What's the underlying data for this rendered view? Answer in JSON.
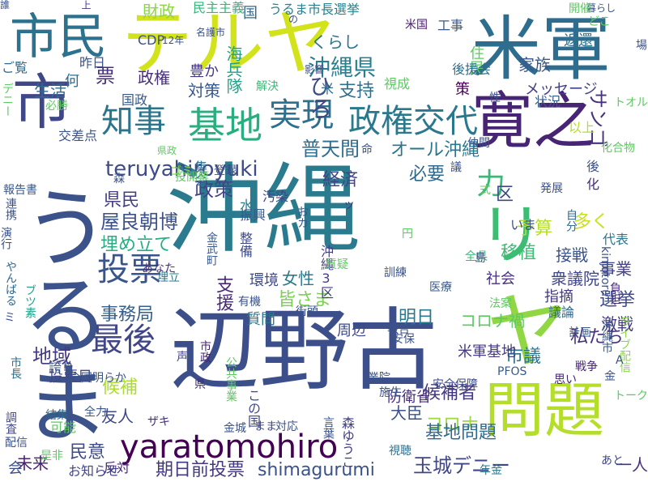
{
  "word_cloud": {
    "words": [
      {
        "text": "沖縄",
        "color": "#2a7b8e"
      },
      {
        "text": "辺野古",
        "color": "#3c4f8a"
      },
      {
        "text": "米軍",
        "color": "#2f6d8e"
      },
      {
        "text": "テルヤ",
        "color": "#d2e21b"
      },
      {
        "text": "市民",
        "color": "#2c728e"
      },
      {
        "text": "寛之",
        "color": "#482475"
      },
      {
        "text": "問題",
        "color": "#b5de2b"
      },
      {
        "text": "うるま",
        "color": "#3b528b"
      },
      {
        "text": "市",
        "color": "#3f4788"
      },
      {
        "text": "yaratomohiro",
        "color": "#440154"
      },
      {
        "text": "知事",
        "color": "#2b748e"
      },
      {
        "text": "基地",
        "color": "#29af7f"
      },
      {
        "text": "実現",
        "color": "#2d708e"
      },
      {
        "text": "政権交代",
        "color": "#2a788e"
      },
      {
        "text": "投票",
        "color": "#39568c"
      },
      {
        "text": "最後",
        "color": "#404688"
      },
      {
        "text": "ヤ",
        "color": "#90d743"
      },
      {
        "text": "リ",
        "color": "#3dbc74"
      },
      {
        "text": "沖縄県",
        "color": "#287d8e"
      },
      {
        "text": "普天間",
        "color": "#2e6e8e"
      },
      {
        "text": "オール沖縄",
        "color": "#2a768e"
      },
      {
        "text": "teruyahiroyuki",
        "color": "#3e4a89"
      },
      {
        "text": "政策",
        "color": "#414487"
      },
      {
        "text": "必要",
        "color": "#31688e"
      },
      {
        "text": "県民",
        "color": "#433e85"
      },
      {
        "text": "屋良朝博",
        "color": "#3b528b"
      },
      {
        "text": "埋め立て",
        "color": "#27ad81"
      },
      {
        "text": "事務局",
        "color": "#355f8d"
      },
      {
        "text": "地域",
        "color": "#443983"
      },
      {
        "text": "候補",
        "color": "#addc30"
      },
      {
        "text": "期日前投票",
        "color": "#453781"
      },
      {
        "text": "shimagurumi",
        "color": "#3b528b"
      },
      {
        "text": "玉城デニー",
        "color": "#404688"
      },
      {
        "text": "コロナ",
        "color": "#9bd93c"
      },
      {
        "text": "基地問題",
        "color": "#2f6b8e"
      },
      {
        "text": "候補者",
        "color": "#453882"
      },
      {
        "text": "私たち",
        "color": "#46327e"
      },
      {
        "text": "選挙",
        "color": "#3e4989"
      },
      {
        "text": "明日",
        "color": "#29798e"
      },
      {
        "text": "移植",
        "color": "#3dbc74"
      },
      {
        "text": "予算",
        "color": "#b5de2b"
      },
      {
        "text": "多く",
        "color": "#c8e020"
      },
      {
        "text": "事業",
        "color": "#414287"
      },
      {
        "text": "力",
        "color": "#38b977"
      },
      {
        "text": "経済",
        "color": "#404588"
      },
      {
        "text": "財政",
        "color": "#8bd646"
      },
      {
        "text": "民主主義",
        "color": "#35b779"
      },
      {
        "text": "うるま市長選挙",
        "color": "#26828e"
      },
      {
        "text": "くらし",
        "color": "#2c738e"
      },
      {
        "text": "ひろ",
        "color": "#3f4889"
      },
      {
        "text": "支持",
        "color": "#2d708e"
      },
      {
        "text": "対策",
        "color": "#38598c"
      },
      {
        "text": "政権",
        "color": "#472d7b"
      },
      {
        "text": "豊か",
        "color": "#453781"
      },
      {
        "text": "海兵隊",
        "color": "#1fa088"
      },
      {
        "text": "生活",
        "color": "#31688e"
      },
      {
        "text": "ご覧",
        "color": "#30698e"
      },
      {
        "text": "何",
        "color": "#2d708e"
      },
      {
        "text": "昨日",
        "color": "#3a548c"
      },
      {
        "text": "票",
        "color": "#46307e"
      },
      {
        "text": "国",
        "color": "#31688e"
      },
      {
        "text": "上",
        "color": "#433d84"
      },
      {
        "text": "CDP",
        "color": "#3d4e8a"
      },
      {
        "text": "米国",
        "color": "#481a6c"
      },
      {
        "text": "工事",
        "color": "#38598c"
      },
      {
        "text": "家族",
        "color": "#38598c"
      },
      {
        "text": "住民",
        "color": "#5ec962"
      },
      {
        "text": "後援会",
        "color": "#2e6f8e"
      },
      {
        "text": "返還",
        "color": "#2c738e"
      },
      {
        "text": "メッセージ",
        "color": "#424186"
      },
      {
        "text": "状況",
        "color": "#375a8c"
      },
      {
        "text": "サンゴ",
        "color": "#46327e"
      },
      {
        "text": "以上",
        "color": "#b5de2b"
      },
      {
        "text": "女性",
        "color": "#297a8e"
      },
      {
        "text": "皆さま",
        "color": "#7ad151"
      },
      {
        "text": "質問",
        "color": "#2b758e"
      },
      {
        "text": "環境",
        "color": "#3f4889"
      },
      {
        "text": "支援",
        "color": "#482878"
      },
      {
        "text": "コロナ禍",
        "color": "#5ec962"
      },
      {
        "text": "社会",
        "color": "#46307e"
      },
      {
        "text": "衆議院",
        "color": "#404688"
      },
      {
        "text": "指摘",
        "color": "#453781"
      },
      {
        "text": "議論",
        "color": "#31688e"
      },
      {
        "text": "激戦",
        "color": "#443b84"
      },
      {
        "text": "接戦",
        "color": "#3b528b"
      },
      {
        "text": "代表",
        "color": "#2b758e"
      },
      {
        "text": "区",
        "color": "#3e4989"
      },
      {
        "text": "市議",
        "color": "#2c738e"
      },
      {
        "text": "周辺",
        "color": "#3e4989"
      },
      {
        "text": "防衛省",
        "color": "#472c7a"
      },
      {
        "text": "米軍基地",
        "color": "#443b84"
      },
      {
        "text": "大臣",
        "color": "#3b528b"
      },
      {
        "text": "友人",
        "color": "#3e4989"
      },
      {
        "text": "投票日",
        "color": "#3e4989"
      },
      {
        "text": "民意",
        "color": "#3e4a89"
      },
      {
        "text": "未来",
        "color": "#482173"
      },
      {
        "text": "会",
        "color": "#3c4f8a"
      },
      {
        "text": "反対",
        "color": "#482475"
      },
      {
        "text": "お知らせ",
        "color": "#404588"
      },
      {
        "text": "一人",
        "color": "#46337f"
      },
      {
        "text": "森ゆうこ",
        "color": "#424086"
      },
      {
        "text": "集会",
        "color": "#31688e"
      },
      {
        "text": "解決",
        "color": "#3aba76"
      },
      {
        "text": "米",
        "color": "#2e6e8e"
      },
      {
        "text": "策",
        "color": "#440154"
      },
      {
        "text": "国政",
        "color": "#38598c"
      },
      {
        "text": "必勝",
        "color": "#5ec962"
      },
      {
        "text": "交差点",
        "color": "#3a548c"
      },
      {
        "text": "水",
        "color": "#287d8e"
      },
      {
        "text": "自分",
        "color": "#31688e"
      },
      {
        "text": "発展",
        "color": "#3b528b"
      },
      {
        "text": "後",
        "color": "#3b528b"
      },
      {
        "text": "化",
        "color": "#46307e"
      },
      {
        "text": "汚染",
        "color": "#404588"
      },
      {
        "text": "振興",
        "color": "#38598c"
      },
      {
        "text": "県政",
        "color": "#5ec962"
      },
      {
        "text": "整備",
        "color": "#3e4989"
      },
      {
        "text": "いま",
        "color": "#3b528b"
      },
      {
        "text": "おカ",
        "color": "#3b528b"
      },
      {
        "text": "沖縄3区",
        "color": "#433e85"
      },
      {
        "text": "ゴミ",
        "color": "#8bd646"
      },
      {
        "text": "報告書",
        "color": "#38598c"
      },
      {
        "text": "連携",
        "color": "#3b528b"
      },
      {
        "text": "演行",
        "color": "#3b528b"
      },
      {
        "text": "やんばる",
        "color": "#31688e"
      },
      {
        "text": "デニー",
        "color": "#5ec962"
      },
      {
        "text": "ブツ素",
        "color": "#1fa088"
      },
      {
        "text": "埋立",
        "color": "#2a788e"
      },
      {
        "text": "金武町",
        "color": "#38598c"
      },
      {
        "text": "あなた",
        "color": "#46307e"
      },
      {
        "text": "有機",
        "color": "#3b528b"
      },
      {
        "text": "街頭",
        "color": "#3b528b"
      },
      {
        "text": "市政",
        "color": "#482475"
      },
      {
        "text": "公共事業",
        "color": "#5ec962"
      },
      {
        "text": "県",
        "color": "#472c7a"
      },
      {
        "text": "この国",
        "color": "#3f4889"
      },
      {
        "text": "誇り",
        "color": "#3b528b"
      },
      {
        "text": "市長",
        "color": "#2e6f8e"
      },
      {
        "text": "調査",
        "color": "#404588"
      },
      {
        "text": "全国明らか",
        "color": "#3a548c"
      },
      {
        "text": "声",
        "color": "#414487"
      },
      {
        "text": "全力",
        "color": "#38598c"
      },
      {
        "text": "ザキ",
        "color": "#46307e"
      },
      {
        "text": "金城",
        "color": "#3b528b"
      },
      {
        "text": "まま",
        "color": "#3e4989"
      },
      {
        "text": "対応",
        "color": "#3b528b"
      },
      {
        "text": "言葉",
        "color": "#3b528b"
      },
      {
        "text": "結集",
        "color": "#31688e"
      },
      {
        "text": "可能",
        "color": "#5ec962"
      },
      {
        "text": "配信",
        "color": "#3b528b"
      },
      {
        "text": "是非",
        "color": "#5ec962"
      },
      {
        "text": "視聴",
        "color": "#2e6f8e"
      },
      {
        "text": "年金",
        "color": "#2a788e"
      },
      {
        "text": "あと",
        "color": "#3f4889"
      },
      {
        "text": "安全保障",
        "color": "#3e4989"
      },
      {
        "text": "PFOS",
        "color": "#38598c"
      },
      {
        "text": "思い",
        "color": "#482475"
      },
      {
        "text": "戦争",
        "color": "#482475"
      },
      {
        "text": "沖縄市",
        "color": "#38598c"
      },
      {
        "text": "ライブ配信",
        "color": "#8bd646"
      },
      {
        "text": "負担",
        "color": "#46307e"
      },
      {
        "text": "kinjotoru",
        "color": "#3b528b"
      },
      {
        "text": "金",
        "color": "#3b528b"
      },
      {
        "text": "式",
        "color": "#5ec962"
      },
      {
        "text": "全県",
        "color": "#3aba76"
      },
      {
        "text": "議",
        "color": "#3b528b"
      },
      {
        "text": "円",
        "color": "#5ec962"
      },
      {
        "text": "訓練",
        "color": "#3b528b"
      },
      {
        "text": "質疑",
        "color": "#5ec962"
      },
      {
        "text": "医療",
        "color": "#38598c"
      },
      {
        "text": "報告",
        "color": "#3b528b"
      },
      {
        "text": "安保",
        "color": "#3b528b"
      },
      {
        "text": "法案",
        "color": "#5ec962"
      },
      {
        "text": "計画",
        "color": "#38598c"
      },
      {
        "text": "業院",
        "color": "#3b528b"
      },
      {
        "text": "ッ",
        "color": "#46307e"
      },
      {
        "text": "仲間",
        "color": "#3b528b"
      },
      {
        "text": "化合物",
        "color": "#5ec962"
      },
      {
        "text": "登録",
        "color": "#3b528b"
      },
      {
        "text": "森",
        "color": "#3b528b"
      },
      {
        "text": "投開票",
        "color": "#5ec962"
      },
      {
        "text": "島",
        "color": "#3b528b"
      },
      {
        "text": "命",
        "color": "#3b528b"
      },
      {
        "text": "12年",
        "color": "#3b528b"
      },
      {
        "text": "名護市",
        "color": "#3b528b"
      },
      {
        "text": "影響",
        "color": "#3b528b"
      },
      {
        "text": "視成",
        "color": "#5ec962"
      },
      {
        "text": "性",
        "color": "#3b528b"
      },
      {
        "text": "どこ",
        "color": "#5ec962"
      },
      {
        "text": "暮らし",
        "color": "#3b528b"
      },
      {
        "text": "開催",
        "color": "#5ec962"
      },
      {
        "text": "場",
        "color": "#3b528b"
      },
      {
        "text": "トオル",
        "color": "#5ec962"
      },
      {
        "text": "ミ",
        "color": "#3b528b"
      },
      {
        "text": "トーク",
        "color": "#5ec962"
      },
      {
        "text": "A",
        "color": "#3b528b"
      },
      {
        "text": "の",
        "color": "#3b528b"
      },
      {
        "text": "施生",
        "color": "#3b528b"
      },
      {
        "text": "誰",
        "color": "#3b528b"
      }
    ]
  }
}
